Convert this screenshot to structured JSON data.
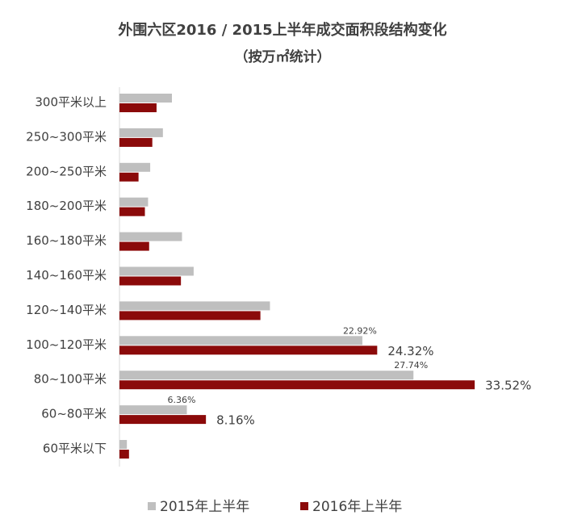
{
  "chart_data": {
    "type": "hbar",
    "title": "外围六区2016 / 2015上半年成交面积段结构变化",
    "subtitle": "（按万㎡统计）",
    "categories": [
      "300平米以上",
      "250~300平米",
      "200~250平米",
      "180~200平米",
      "160~180平米",
      "140~160平米",
      "120~140平米",
      "100~120平米",
      "80~100平米",
      "60~80平米",
      "60平米以下"
    ],
    "series": [
      {
        "name": "2015年上半年",
        "color": "#bfbfbf",
        "values": [
          4.95,
          4.1,
          2.9,
          2.7,
          5.9,
          7.0,
          14.2,
          22.92,
          27.74,
          6.36,
          0.7
        ],
        "value_labels": [
          null,
          null,
          null,
          null,
          null,
          null,
          null,
          "22.92%",
          "27.74%",
          "6.36%",
          null
        ]
      },
      {
        "name": "2016年上半年",
        "color": "#8b0a0a",
        "values": [
          3.5,
          3.1,
          1.8,
          2.4,
          2.8,
          5.8,
          13.3,
          24.32,
          33.52,
          8.16,
          0.9
        ],
        "value_labels": [
          null,
          null,
          null,
          null,
          null,
          null,
          null,
          "24.32%",
          "33.52%",
          "8.16%",
          null
        ]
      }
    ],
    "xlim": [
      0,
      34.5
    ],
    "legend": "bottom"
  }
}
